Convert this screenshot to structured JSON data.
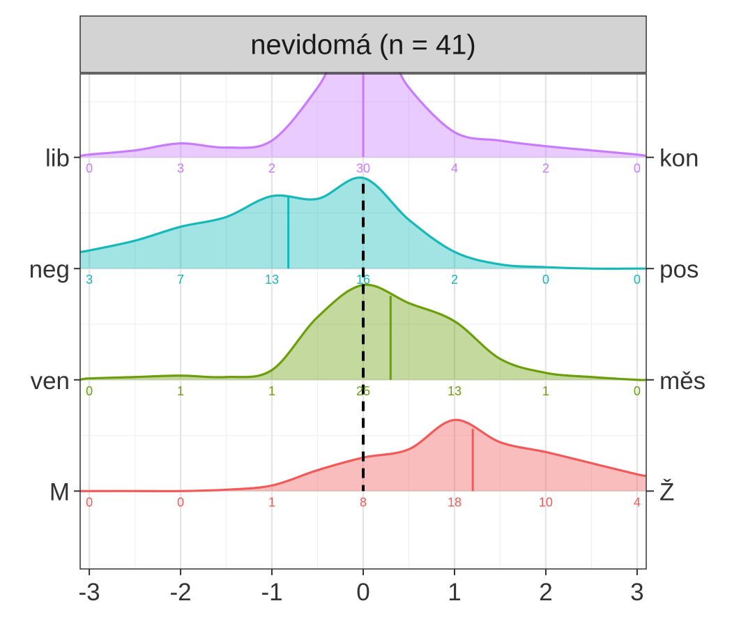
{
  "chart_data": {
    "type": "ridgeline",
    "title": "nevidomá (n = 41)",
    "x_ticks": [
      "-3",
      "-2",
      "-1",
      "0",
      "1",
      "2",
      "3"
    ],
    "xlim": [
      -3.1,
      3.1
    ],
    "ylim": [
      0.3,
      4.75
    ],
    "grid": true,
    "reference_line_x": 0,
    "ridges": [
      {
        "left_label": "lib",
        "right_label": "kon",
        "color": "#C77CFF",
        "mean": 0.0,
        "count_x": [
          -3,
          -2,
          -1,
          0,
          1,
          2,
          3
        ],
        "counts": [
          "0",
          "3",
          "2",
          "30",
          "4",
          "2",
          "0"
        ],
        "density_x": [
          -3.1,
          -3.0,
          -2.5,
          -2.0,
          -1.5,
          -1.0,
          -0.5,
          -0.3,
          0.0,
          0.3,
          0.5,
          1.0,
          1.5,
          2.0,
          2.5,
          3.0,
          3.1
        ],
        "density_y": [
          0.01,
          0.02,
          0.05,
          0.1,
          0.07,
          0.12,
          0.5,
          0.75,
          1.0,
          0.75,
          0.5,
          0.18,
          0.12,
          0.08,
          0.05,
          0.02,
          0.01
        ]
      },
      {
        "left_label": "neg",
        "right_label": "pos",
        "color": "#17B8B8",
        "mean": -0.82,
        "count_x": [
          -3,
          -2,
          -1,
          0,
          1,
          2,
          3
        ],
        "counts": [
          "3",
          "7",
          "13",
          "16",
          "2",
          "0",
          "0"
        ],
        "density_x": [
          -3.1,
          -3.0,
          -2.5,
          -2.0,
          -1.5,
          -1.0,
          -0.5,
          0.0,
          0.5,
          1.0,
          1.5,
          2.0,
          2.5,
          3.0,
          3.1
        ],
        "density_y": [
          0.12,
          0.13,
          0.2,
          0.3,
          0.37,
          0.52,
          0.5,
          0.65,
          0.35,
          0.12,
          0.03,
          0.01,
          0.0,
          0.0,
          0.0
        ]
      },
      {
        "left_label": "ven",
        "right_label": "měs",
        "color": "#6A9F0A",
        "mean": 0.3,
        "count_x": [
          -3,
          -2,
          -1,
          0,
          1,
          2,
          3
        ],
        "counts": [
          "0",
          "1",
          "1",
          "25",
          "13",
          "1",
          "0"
        ],
        "density_x": [
          -3.1,
          -3.0,
          -2.5,
          -2.0,
          -1.5,
          -1.0,
          -0.5,
          0.0,
          0.5,
          1.0,
          1.5,
          2.0,
          2.5,
          3.0,
          3.1
        ],
        "density_y": [
          0.0,
          0.01,
          0.02,
          0.03,
          0.02,
          0.07,
          0.45,
          0.68,
          0.55,
          0.42,
          0.15,
          0.05,
          0.02,
          0.0,
          0.0
        ]
      },
      {
        "left_label": "M",
        "right_label": "Ž",
        "color": "#F25A5A",
        "mean": 1.2,
        "count_x": [
          -3,
          -2,
          -1,
          0,
          1,
          2,
          3
        ],
        "counts": [
          "0",
          "0",
          "1",
          "8",
          "18",
          "10",
          "4"
        ],
        "density_x": [
          -3.1,
          -3.0,
          -2.5,
          -2.0,
          -1.5,
          -1.0,
          -0.5,
          0.0,
          0.5,
          1.0,
          1.5,
          2.0,
          2.5,
          3.0,
          3.1
        ],
        "density_y": [
          0.0,
          0.0,
          0.0,
          0.0,
          0.01,
          0.04,
          0.15,
          0.24,
          0.3,
          0.51,
          0.35,
          0.28,
          0.2,
          0.12,
          0.11
        ]
      }
    ]
  }
}
